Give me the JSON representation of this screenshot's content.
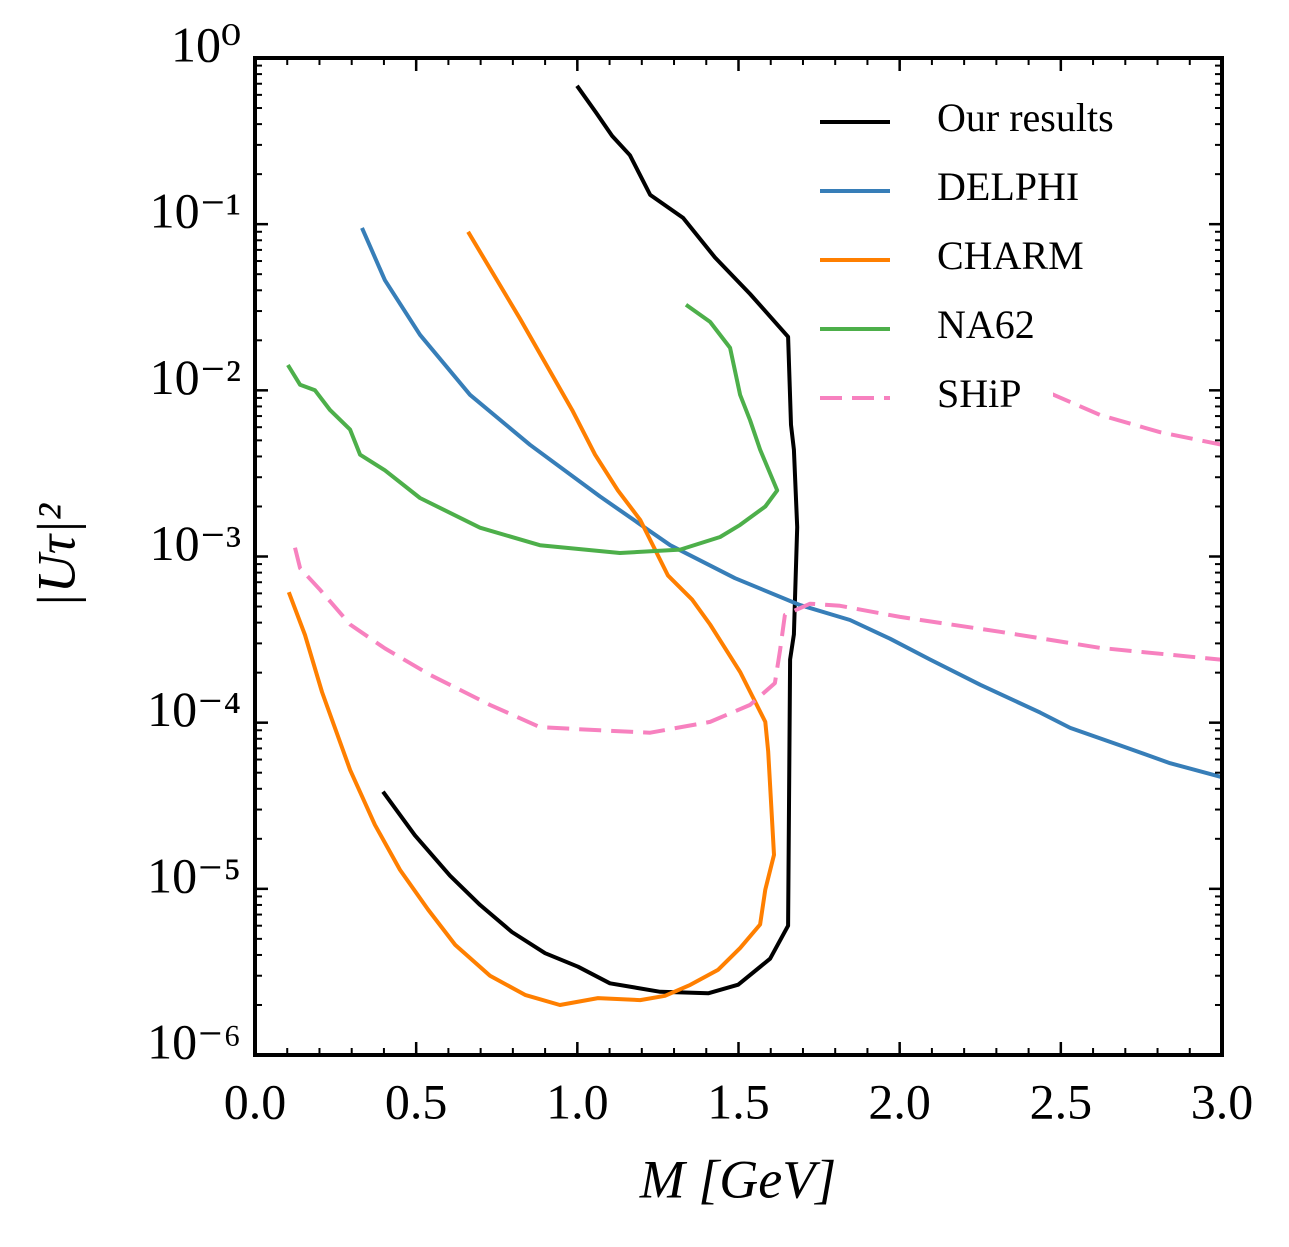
{
  "chart_data": {
    "type": "line",
    "xlabel": "M [GeV]",
    "ylabel": "|Uτ|²",
    "xlim": [
      0,
      3
    ],
    "ylim": [
      1e-06,
      1
    ],
    "yscale": "log",
    "xticks": [
      {
        "value": 0,
        "label": "0.0"
      },
      0.5,
      {
        "value": 1,
        "label": "1.0"
      },
      1.5,
      {
        "value": 2,
        "label": "2.0"
      },
      2.5,
      {
        "value": 3,
        "label": "3.0"
      }
    ],
    "yticks": [
      {
        "value": 1e-06,
        "label": "10⁻⁶"
      },
      {
        "value": 1e-05,
        "label": "10⁻⁵"
      },
      {
        "value": 0.0001,
        "label": "10⁻⁴"
      },
      {
        "value": 0.001,
        "label": "10⁻³"
      },
      {
        "value": 0.01,
        "label": "10⁻²"
      },
      {
        "value": 0.1,
        "label": "10⁻¹"
      },
      {
        "value": 1,
        "label": "10⁰"
      }
    ],
    "grid": false,
    "minor_ticks": true,
    "legend": "upper right",
    "series": [
      {
        "name": "Our results",
        "color": "#000000",
        "dash": "solid",
        "x": [
          0.397,
          0.496,
          0.605,
          0.698,
          0.797,
          0.9,
          1.002,
          1.101,
          1.257,
          1.406,
          1.499,
          1.598,
          1.654,
          1.66,
          1.672,
          1.682,
          1.672,
          1.663,
          1.654,
          1.536,
          1.427,
          1.328,
          1.226,
          1.163,
          1.108,
          1.058,
          0.999
        ],
        "values": [
          3.84e-05,
          2.1e-05,
          1.2e-05,
          8e-06,
          5.5e-06,
          4.1e-06,
          3.4e-06,
          2.7e-06,
          2.4e-06,
          2.35e-06,
          2.65e-06,
          3.8e-06,
          6e-06,
          0.00024,
          0.00034,
          0.0015,
          0.0044,
          0.0062,
          0.021,
          0.038,
          0.063,
          0.109,
          0.15,
          0.26,
          0.34,
          0.47,
          0.68
        ]
      },
      {
        "name": "DELPHI",
        "color": "#377eb8",
        "dash": "solid",
        "x": [
          0.332,
          0.403,
          0.512,
          0.667,
          0.853,
          1.07,
          1.288,
          1.489,
          1.691,
          1.846,
          1.97,
          2.094,
          2.25,
          2.436,
          2.529,
          2.684,
          2.839,
          3.0
        ],
        "values": [
          0.095,
          0.046,
          0.0216,
          0.0094,
          0.0047,
          0.0023,
          0.00117,
          0.00074,
          0.00051,
          0.000415,
          0.00032,
          0.00024,
          0.000169,
          0.000115,
          9.3e-05,
          7.3e-05,
          5.7e-05,
          4.7e-05
        ]
      },
      {
        "name": "CHARM",
        "color": "#ff7f00",
        "dash": "solid",
        "x": [
          0.661,
          0.822,
          0.984,
          1.055,
          1.126,
          1.195,
          1.281,
          1.356,
          1.412,
          1.505,
          1.583,
          1.592,
          1.61,
          1.583,
          1.567,
          1.505,
          1.437,
          1.35,
          1.272,
          1.195,
          1.064,
          0.946,
          0.838,
          0.729,
          0.621,
          0.537,
          0.45,
          0.372,
          0.295,
          0.208,
          0.155,
          0.105
        ],
        "values": [
          0.09,
          0.027,
          0.0076,
          0.0041,
          0.0025,
          0.00166,
          0.00077,
          0.00055,
          0.00039,
          0.000202,
          0.000101,
          6.7e-05,
          1.6e-05,
          9.9e-06,
          6.1e-06,
          4.4e-06,
          3.26e-06,
          2.64e-06,
          2.27e-06,
          2.14e-06,
          2.2e-06,
          2e-06,
          2.3e-06,
          3e-06,
          4.6e-06,
          7.5e-06,
          1.3e-05,
          2.43e-05,
          5.2e-05,
          0.000153,
          0.000337,
          0.00061
        ]
      },
      {
        "name": "NA62",
        "color": "#4daf4a",
        "dash": "solid",
        "x": [
          1.337,
          1.412,
          1.474,
          1.505,
          1.536,
          1.567,
          1.62,
          1.583,
          1.505,
          1.443,
          1.319,
          1.132,
          0.884,
          0.698,
          0.512,
          0.403,
          0.326,
          0.295,
          0.233,
          0.186,
          0.14,
          0.102
        ],
        "values": [
          0.0327,
          0.0258,
          0.018,
          0.0094,
          0.0066,
          0.0044,
          0.0025,
          0.002,
          0.00155,
          0.00131,
          0.0011,
          0.00105,
          0.00117,
          0.00149,
          0.00225,
          0.0033,
          0.0041,
          0.0058,
          0.0076,
          0.01,
          0.0108,
          0.0142
        ]
      },
      {
        "name": "SHiP",
        "color": "#f781bf",
        "dash": "dashed",
        "x": [
          0.124,
          0.14,
          0.202,
          0.295,
          0.403,
          0.543,
          0.729,
          0.884,
          1.07,
          1.226,
          1.412,
          1.536,
          1.613,
          1.629,
          1.644,
          1.722,
          1.815,
          2.001,
          2.312,
          2.622,
          3.0,
          null,
          2.467,
          2.622,
          2.808,
          3.0
        ],
        "values": [
          0.00113,
          0.00085,
          0.00063,
          0.00039,
          0.00028,
          0.000194,
          0.000128,
          9.4e-05,
          9e-05,
          8.7e-05,
          0.000101,
          0.000128,
          0.000173,
          0.000274,
          0.000445,
          0.00052,
          0.000505,
          0.000433,
          0.000352,
          0.000282,
          0.000239,
          null,
          0.0096,
          0.0071,
          0.0056,
          0.0047
        ]
      }
    ]
  }
}
